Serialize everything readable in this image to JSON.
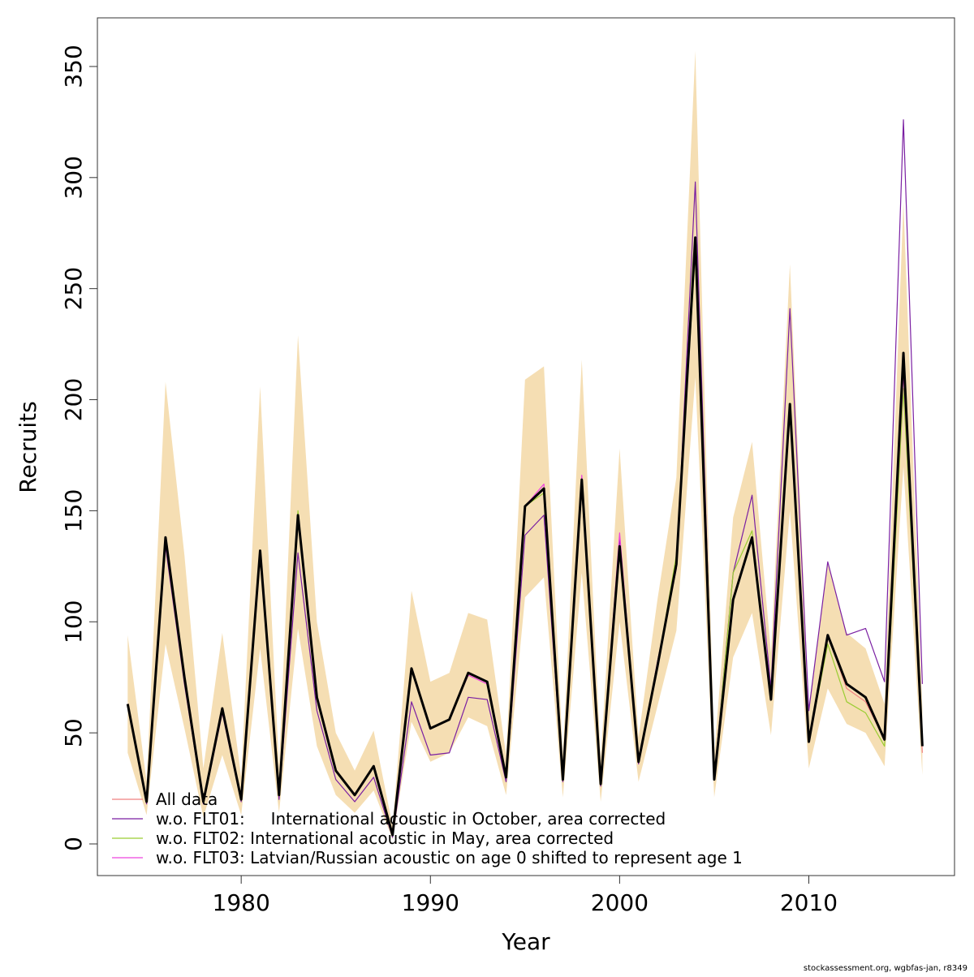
{
  "chart_data": {
    "type": "line",
    "xlabel": "Year",
    "ylabel": "Recruits",
    "footnote": "stockassessment.org, wgbfas-jan, r8349",
    "x": [
      1974,
      1975,
      1976,
      1977,
      1978,
      1979,
      1980,
      1981,
      1982,
      1983,
      1984,
      1985,
      1986,
      1987,
      1988,
      1989,
      1990,
      1991,
      1992,
      1993,
      1994,
      1995,
      1996,
      1997,
      1998,
      1999,
      2000,
      2001,
      2002,
      2003,
      2004,
      2005,
      2006,
      2007,
      2008,
      2009,
      2010,
      2011,
      2012,
      2013,
      2014,
      2015,
      2016
    ],
    "xlim": [
      1972.4,
      2017.7
    ],
    "ylim": [
      -14.25,
      371.9
    ],
    "xticks": [
      1980,
      1990,
      2000,
      2010
    ],
    "yticks": [
      0,
      50,
      100,
      150,
      200,
      250,
      300,
      350
    ],
    "band_color": "#f5deb3",
    "band_lower": [
      41,
      13,
      90,
      52,
      12,
      40,
      13,
      88,
      14,
      97,
      44,
      22,
      14,
      24,
      2,
      55,
      37,
      41,
      57,
      53,
      22,
      111,
      120,
      21,
      122,
      19,
      100,
      28,
      62,
      96,
      210,
      21,
      84,
      104,
      49,
      150,
      34,
      70,
      54,
      50,
      35,
      170,
      31
    ],
    "band_upper": [
      94,
      28,
      208,
      130,
      34,
      95,
      30,
      206,
      35,
      229,
      100,
      50,
      33,
      51,
      8,
      114,
      73,
      77,
      104,
      101,
      40,
      209,
      215,
      40,
      218,
      38,
      178,
      48,
      110,
      165,
      357,
      40,
      147,
      181,
      86,
      261,
      62,
      126,
      95,
      88,
      63,
      289,
      61
    ],
    "color": "#000000",
    "values": [
      63,
      19,
      138,
      75,
      19,
      61,
      20,
      132,
      22,
      148,
      66,
      33,
      22,
      35,
      4,
      79,
      52,
      56,
      77,
      73,
      30,
      152,
      160,
      29,
      164,
      27,
      134,
      37,
      80,
      126,
      273,
      29,
      110,
      138,
      65,
      198,
      46,
      94,
      72,
      66,
      47,
      221,
      44
    ],
    "legend": "bottomleft",
    "series": [
      {
        "name": "All data",
        "color": "#f08080",
        "values": [
          63,
          19,
          138,
          75,
          19,
          61,
          20,
          132,
          22,
          148,
          66,
          33,
          22,
          35,
          4,
          79,
          52,
          56,
          77,
          73,
          30,
          152,
          160,
          29,
          164,
          27,
          134,
          37,
          80,
          126,
          273,
          29,
          110,
          138,
          65,
          198,
          46,
          94,
          70,
          64,
          47,
          221,
          41
        ]
      },
      {
        "name": "w.o. FLT01:     International acoustic in October, area corrected",
        "color": "#7a1fa2",
        "values": [
          62,
          18,
          134,
          72,
          18,
          59,
          19,
          130,
          20,
          131,
          60,
          29,
          19,
          30,
          3,
          64,
          40,
          41,
          66,
          65,
          28,
          139,
          148,
          28,
          160,
          26,
          138,
          36,
          82,
          124,
          298,
          30,
          122,
          157,
          70,
          241,
          60,
          127,
          94,
          97,
          73,
          326,
          72
        ]
      },
      {
        "name": "w.o. FLT02: International acoustic in May, area corrected",
        "color": "#9acd32",
        "values": [
          63,
          19,
          138,
          75,
          19,
          61,
          20,
          132,
          22,
          150,
          66,
          33,
          22,
          35,
          4,
          79,
          52,
          56,
          77,
          73,
          30,
          152,
          158,
          29,
          164,
          27,
          134,
          37,
          80,
          130,
          265,
          29,
          122,
          141,
          65,
          195,
          46,
          90,
          64,
          59,
          44,
          205,
          44
        ]
      },
      {
        "name": "w.o. FLT03: Latvian/Russian acoustic on age 0 shifted to represent age 1",
        "color": "#ee44dd",
        "values": [
          63,
          19,
          138,
          75,
          19,
          61,
          20,
          132,
          22,
          148,
          66,
          33,
          22,
          35,
          4,
          79,
          52,
          56,
          76,
          72,
          30,
          152,
          162,
          29,
          166,
          27,
          140,
          37,
          80,
          126,
          273,
          29,
          110,
          138,
          65,
          195,
          46,
          94,
          72,
          66,
          47,
          212,
          44
        ]
      }
    ]
  }
}
